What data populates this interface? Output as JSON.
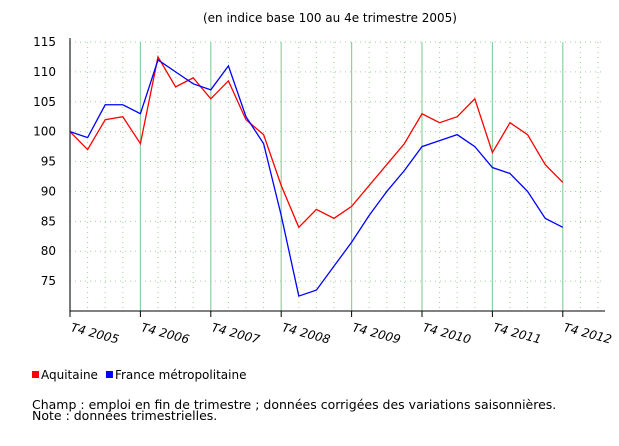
{
  "chart_data": {
    "type": "line",
    "title": "(en indice base 100 au 4e trimestre 2005)",
    "categories": [
      "T4 2005",
      null,
      null,
      null,
      "T4 2006",
      null,
      null,
      null,
      "T4 2007",
      null,
      null,
      null,
      "T4 2008",
      null,
      null,
      null,
      "T4 2009",
      null,
      null,
      null,
      "T4 2010",
      null,
      null,
      null,
      "T4 2011",
      null,
      null,
      null,
      "T4 2012"
    ],
    "series": [
      {
        "name": "Aquitaine",
        "color": "#ff0000",
        "values": [
          100,
          97,
          102,
          102.5,
          98,
          112.5,
          107.5,
          109,
          105.5,
          108.5,
          102,
          99.5,
          91,
          84,
          87,
          85.5,
          87.5,
          91,
          94.5,
          98,
          103,
          101.5,
          102.5,
          105.5,
          96.5,
          101.5,
          99.5,
          94.5,
          91.5
        ]
      },
      {
        "name": "France métropolitaine",
        "color": "#0000ff",
        "values": [
          100,
          99,
          104.5,
          104.5,
          103,
          112,
          110,
          108,
          107,
          111,
          102.5,
          98,
          86,
          72.5,
          73.5,
          77.5,
          81.5,
          86,
          90,
          93.5,
          97.5,
          98.5,
          99.5,
          97.5,
          94,
          93,
          90,
          85.5,
          84
        ]
      }
    ],
    "ylim": [
      70,
      115
    ],
    "yticks": [
      75,
      80,
      85,
      90,
      95,
      100,
      105,
      110,
      115
    ],
    "grid": true,
    "notes": [
      "Champ : emploi en fin de trimestre ; données corrigées des variations saisonnières.",
      "Note : données trimestrielles."
    ]
  }
}
